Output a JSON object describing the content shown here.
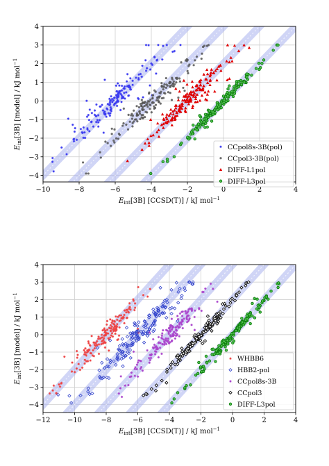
{
  "chart_data": [
    {
      "type": "scatter",
      "xlabel_prefix": "E",
      "xlabel_sub": "int",
      "xlabel_rest": "[3B] [CCSD(T)] / kJ mol",
      "xlabel_sup": "−1",
      "ylabel_prefix": "E",
      "ylabel_sub": "int",
      "ylabel_rest": "[3B] [model] / kJ mol",
      "ylabel_sup": "−1",
      "xlim": [
        -10,
        4
      ],
      "ylim": [
        -4.35,
        4
      ],
      "xticks": [
        -10,
        -8,
        -6,
        -4,
        -2,
        0,
        2,
        4
      ],
      "xtick_labels": [
        "−10",
        "−8",
        "−6",
        "−4",
        "−2",
        "0",
        "2",
        "4"
      ],
      "yticks": [
        -4,
        -3,
        -2,
        -1,
        0,
        1,
        2,
        3,
        4
      ],
      "ytick_labels": [
        "−4",
        "−3",
        "−2",
        "−1",
        "0",
        "1",
        "2",
        "3",
        "4"
      ],
      "grid": true,
      "legend_position": "bottom-right",
      "bands": [
        {
          "x0": -10,
          "y0": -4,
          "x1": -2.0,
          "y1": 4.0
        },
        {
          "x0": -8.0,
          "y0": -4,
          "x1": 0.0,
          "y1": 4.0
        },
        {
          "x0": -6.0,
          "y0": -4,
          "x1": 2.0,
          "y1": 4.0
        },
        {
          "x0": -4.0,
          "y0": -4,
          "x1": 4.0,
          "y1": 4.0
        }
      ],
      "band_color": "#aab2ee",
      "series": [
        {
          "name": "CCpol8s-3B(pol)",
          "color": "#3a3af0",
          "marker": "star",
          "offset": -6,
          "spread": 0.3,
          "n": 170,
          "seed": 11
        },
        {
          "name": "CCpol3-3B(pol)",
          "color": "#555555",
          "marker": "circle",
          "offset": -4,
          "spread": 0.28,
          "n": 170,
          "seed": 23
        },
        {
          "name": "DIFF-L1pol",
          "color": "#e00000",
          "marker": "triangle",
          "offset": -2,
          "spread": 0.25,
          "n": 170,
          "seed": 37
        },
        {
          "name": "DIFF-L3pol",
          "color": "#0a7a0a",
          "marker": "circle-edge",
          "offset": 0,
          "spread": 0.12,
          "n": 170,
          "seed": 41
        }
      ]
    },
    {
      "type": "scatter",
      "xlabel_prefix": "E",
      "xlabel_sub": "int",
      "xlabel_rest": "[3B] [CCSD(T)] / kJ mol",
      "xlabel_sup": "−1",
      "ylabel_prefix": "E",
      "ylabel_sub": "int",
      "ylabel_rest": "[3B] [model] / kJ mol",
      "ylabel_sup": "−1",
      "xlim": [
        -12,
        4
      ],
      "ylim": [
        -4.45,
        4
      ],
      "xticks": [
        -12,
        -10,
        -8,
        -6,
        -4,
        -2,
        0,
        2,
        4
      ],
      "xtick_labels": [
        "−12",
        "−10",
        "−8",
        "−6",
        "−4",
        "−2",
        "0",
        "2",
        "4"
      ],
      "yticks": [
        -4,
        -3,
        -2,
        -1,
        0,
        1,
        2,
        3,
        4
      ],
      "ytick_labels": [
        "−4",
        "−3",
        "−2",
        "−1",
        "0",
        "1",
        "2",
        "3",
        "4"
      ],
      "grid": true,
      "legend_position": "bottom-right",
      "bands": [
        {
          "x0": -12,
          "y0": -4,
          "x1": -4.0,
          "y1": 4.0
        },
        {
          "x0": -10.0,
          "y0": -4,
          "x1": -2.0,
          "y1": 4.0
        },
        {
          "x0": -8.0,
          "y0": -4,
          "x1": 0.0,
          "y1": 4.0
        },
        {
          "x0": -6.0,
          "y0": -4,
          "x1": 2.0,
          "y1": 4.0
        },
        {
          "x0": -4.0,
          "y0": -4,
          "x1": 4.0,
          "y1": 4.0
        }
      ],
      "band_color": "#aab2ee",
      "series": [
        {
          "name": "WHBB6",
          "color": "#ee4444",
          "marker": "star",
          "offset": -8,
          "spread": 0.28,
          "n": 170,
          "seed": 53
        },
        {
          "name": "HBB2-pol",
          "color": "#3344cc",
          "marker": "diamond",
          "offset": -6,
          "spread": 0.3,
          "n": 170,
          "seed": 67
        },
        {
          "name": "CCpol8s-3B",
          "color": "#aa44cc",
          "marker": "star",
          "offset": -4,
          "spread": 0.26,
          "n": 170,
          "seed": 71
        },
        {
          "name": "CCpol3",
          "color": "#111111",
          "marker": "diamond-edge",
          "offset": -2,
          "spread": 0.12,
          "n": 170,
          "seed": 83
        },
        {
          "name": "DIFF-L3pol",
          "color": "#0a7a0a",
          "marker": "circle-edge",
          "offset": 0,
          "spread": 0.12,
          "n": 170,
          "seed": 97
        }
      ]
    }
  ]
}
